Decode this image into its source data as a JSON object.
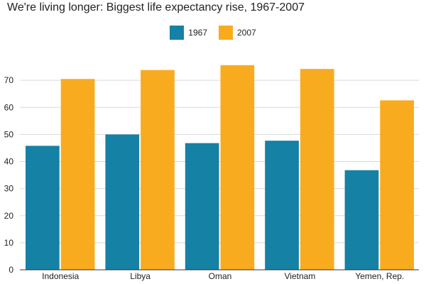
{
  "title": "We're living longer: Biggest life expectancy rise, 1967-2007",
  "legend": {
    "items": [
      {
        "label": "1967",
        "color": "#1581a4"
      },
      {
        "label": "2007",
        "color": "#f9ab1f"
      }
    ]
  },
  "chart_data": {
    "type": "bar",
    "title": "We're living longer: Biggest life expectancy rise, 1967-2007",
    "xlabel": "",
    "ylabel": "",
    "categories": [
      "Indonesia",
      "Libya",
      "Oman",
      "Vietnam",
      "Yemen, Rep."
    ],
    "series": [
      {
        "name": "1967",
        "color": "#1581a4",
        "values": [
          45.8,
          50.0,
          46.8,
          47.7,
          36.8
        ]
      },
      {
        "name": "2007",
        "color": "#f9ab1f",
        "values": [
          70.5,
          73.8,
          75.6,
          74.2,
          62.6
        ]
      }
    ],
    "ylim": [
      0,
      80
    ],
    "yticks": [
      0,
      10,
      20,
      30,
      40,
      50,
      60,
      70
    ],
    "grid": true,
    "legend_position": "top-center"
  }
}
